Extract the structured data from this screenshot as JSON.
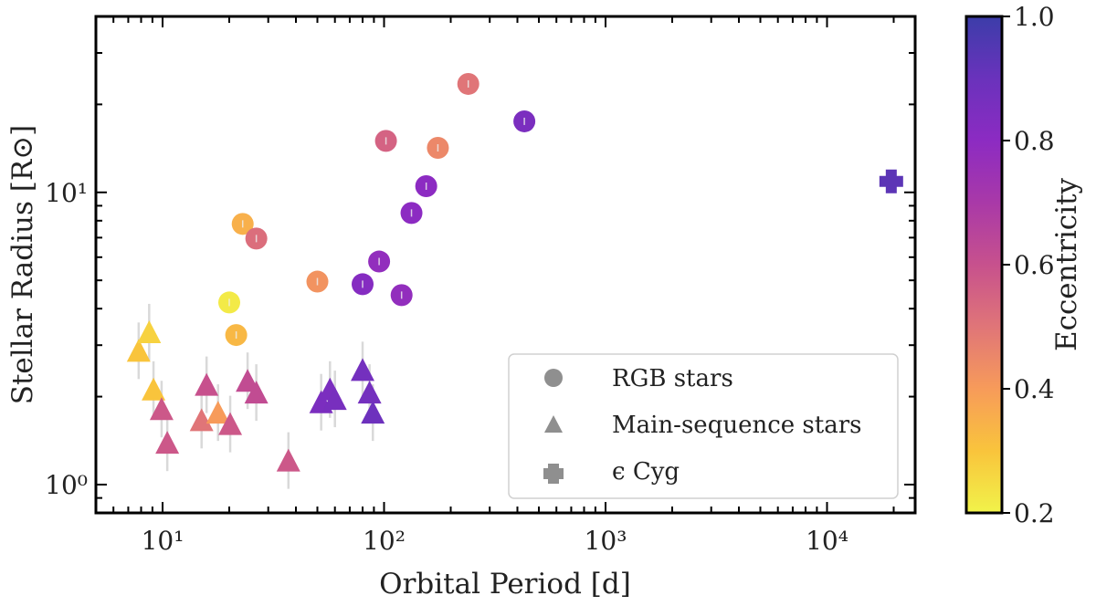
{
  "chart_data": {
    "type": "scatter",
    "xlabel": "Orbital Period [d]",
    "ylabel": "Stellar Radius [R⊙]",
    "xscale": "log",
    "yscale": "log",
    "xlim": [
      5,
      25000
    ],
    "ylim": [
      0.8,
      40
    ],
    "xticks": [
      {
        "value": 10,
        "label": "10¹"
      },
      {
        "value": 100,
        "label": "10²"
      },
      {
        "value": 1000,
        "label": "10³"
      },
      {
        "value": 10000,
        "label": "10⁴"
      }
    ],
    "yticks": [
      {
        "value": 1,
        "label": "10⁰"
      },
      {
        "value": 10,
        "label": "10¹"
      }
    ],
    "grid": false,
    "legend_position": "lower-right",
    "colorbar": {
      "label": "Eccentricity",
      "min": 0.2,
      "max": 1.0,
      "ticks": [
        {
          "value": 0.2,
          "label": "0.2"
        },
        {
          "value": 0.4,
          "label": "0.4"
        },
        {
          "value": 0.6,
          "label": "0.6"
        },
        {
          "value": 0.8,
          "label": "0.8"
        },
        {
          "value": 1.0,
          "label": "1.0"
        }
      ]
    },
    "series": [
      {
        "name": "RGB stars",
        "marker": "circle",
        "points": [
          {
            "x": 20,
            "y": 4.2,
            "e": 0.22
          },
          {
            "x": 21.5,
            "y": 3.25,
            "e": 0.33
          },
          {
            "x": 23,
            "y": 7.8,
            "e": 0.35
          },
          {
            "x": 26.5,
            "y": 6.95,
            "e": 0.52
          },
          {
            "x": 50,
            "y": 4.95,
            "e": 0.42
          },
          {
            "x": 80,
            "y": 4.85,
            "e": 0.82
          },
          {
            "x": 95,
            "y": 5.8,
            "e": 0.78
          },
          {
            "x": 102,
            "y": 15,
            "e": 0.55
          },
          {
            "x": 120,
            "y": 4.45,
            "e": 0.78
          },
          {
            "x": 133,
            "y": 8.5,
            "e": 0.8
          },
          {
            "x": 155,
            "y": 10.5,
            "e": 0.8
          },
          {
            "x": 175,
            "y": 14.2,
            "e": 0.45
          },
          {
            "x": 240,
            "y": 23.5,
            "e": 0.5
          },
          {
            "x": 430,
            "y": 17.5,
            "e": 0.85
          }
        ]
      },
      {
        "name": "Main-sequence stars",
        "marker": "triangle",
        "points": [
          {
            "x": 7.8,
            "y": 2.85,
            "e": 0.3
          },
          {
            "x": 8.7,
            "y": 3.3,
            "e": 0.27
          },
          {
            "x": 9.1,
            "y": 2.1,
            "e": 0.3
          },
          {
            "x": 9.9,
            "y": 1.8,
            "e": 0.58
          },
          {
            "x": 10.5,
            "y": 1.38,
            "e": 0.58
          },
          {
            "x": 15,
            "y": 1.65,
            "e": 0.5
          },
          {
            "x": 15.8,
            "y": 2.18,
            "e": 0.6
          },
          {
            "x": 17.8,
            "y": 1.75,
            "e": 0.4
          },
          {
            "x": 20.2,
            "y": 1.6,
            "e": 0.58
          },
          {
            "x": 24.2,
            "y": 2.25,
            "e": 0.62
          },
          {
            "x": 26.5,
            "y": 2.05,
            "e": 0.62
          },
          {
            "x": 37,
            "y": 1.2,
            "e": 0.58
          },
          {
            "x": 52,
            "y": 1.9,
            "e": 0.85
          },
          {
            "x": 57,
            "y": 2.1,
            "e": 0.85
          },
          {
            "x": 60,
            "y": 1.95,
            "e": 0.86
          },
          {
            "x": 80,
            "y": 2.45,
            "e": 0.87
          },
          {
            "x": 86,
            "y": 2.05,
            "e": 0.87
          },
          {
            "x": 89,
            "y": 1.75,
            "e": 0.89
          }
        ]
      },
      {
        "name": "ϵ Cyg",
        "marker": "plus",
        "points": [
          {
            "x": 19500,
            "y": 10.9,
            "e": 0.93
          }
        ]
      }
    ]
  }
}
